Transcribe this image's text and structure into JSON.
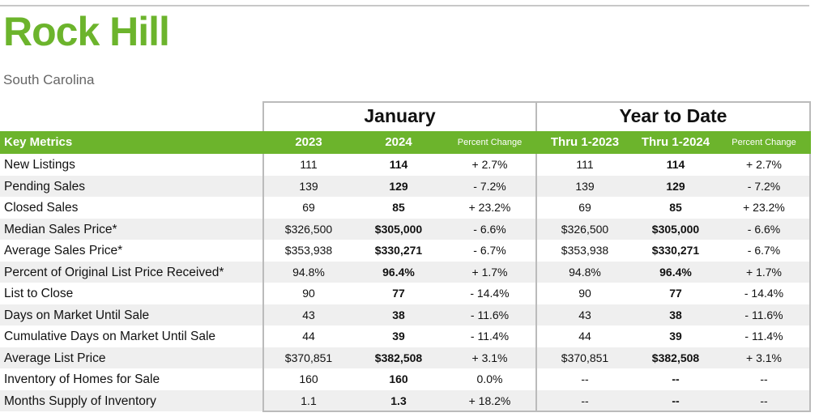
{
  "title": "Rock Hill",
  "subtitle": "South Carolina",
  "groups": {
    "january": "January",
    "ytd": "Year to Date"
  },
  "headers": {
    "key_metrics": "Key Metrics",
    "jan_2023": "2023",
    "jan_2024": "2024",
    "jan_pct": "Percent Change",
    "ytd_2023": "Thru 1-2023",
    "ytd_2024": "Thru 1-2024",
    "ytd_pct": "Percent Change"
  },
  "colors": {
    "accent": "#6cb42c",
    "row_alt": "#efefef",
    "border": "#bbbbbb"
  },
  "rows": [
    {
      "label": "New Listings",
      "jan_2023": "111",
      "jan_2024": "114",
      "jan_pct": "+ 2.7%",
      "ytd_2023": "111",
      "ytd_2024": "114",
      "ytd_pct": "+ 2.7%"
    },
    {
      "label": "Pending Sales",
      "jan_2023": "139",
      "jan_2024": "129",
      "jan_pct": "- 7.2%",
      "ytd_2023": "139",
      "ytd_2024": "129",
      "ytd_pct": "- 7.2%"
    },
    {
      "label": "Closed Sales",
      "jan_2023": "69",
      "jan_2024": "85",
      "jan_pct": "+ 23.2%",
      "ytd_2023": "69",
      "ytd_2024": "85",
      "ytd_pct": "+ 23.2%"
    },
    {
      "label": "Median Sales Price*",
      "jan_2023": "$326,500",
      "jan_2024": "$305,000",
      "jan_pct": "- 6.6%",
      "ytd_2023": "$326,500",
      "ytd_2024": "$305,000",
      "ytd_pct": "- 6.6%"
    },
    {
      "label": "Average Sales Price*",
      "jan_2023": "$353,938",
      "jan_2024": "$330,271",
      "jan_pct": "- 6.7%",
      "ytd_2023": "$353,938",
      "ytd_2024": "$330,271",
      "ytd_pct": "- 6.7%"
    },
    {
      "label": "Percent of Original List Price Received*",
      "jan_2023": "94.8%",
      "jan_2024": "96.4%",
      "jan_pct": "+ 1.7%",
      "ytd_2023": "94.8%",
      "ytd_2024": "96.4%",
      "ytd_pct": "+ 1.7%"
    },
    {
      "label": "List to Close",
      "jan_2023": "90",
      "jan_2024": "77",
      "jan_pct": "- 14.4%",
      "ytd_2023": "90",
      "ytd_2024": "77",
      "ytd_pct": "- 14.4%"
    },
    {
      "label": "Days on Market Until Sale",
      "jan_2023": "43",
      "jan_2024": "38",
      "jan_pct": "- 11.6%",
      "ytd_2023": "43",
      "ytd_2024": "38",
      "ytd_pct": "- 11.6%"
    },
    {
      "label": "Cumulative Days on Market Until Sale",
      "jan_2023": "44",
      "jan_2024": "39",
      "jan_pct": "- 11.4%",
      "ytd_2023": "44",
      "ytd_2024": "39",
      "ytd_pct": "- 11.4%"
    },
    {
      "label": "Average List Price",
      "jan_2023": "$370,851",
      "jan_2024": "$382,508",
      "jan_pct": "+ 3.1%",
      "ytd_2023": "$370,851",
      "ytd_2024": "$382,508",
      "ytd_pct": "+ 3.1%"
    },
    {
      "label": "Inventory of Homes for Sale",
      "jan_2023": "160",
      "jan_2024": "160",
      "jan_pct": "0.0%",
      "ytd_2023": "--",
      "ytd_2024": "--",
      "ytd_pct": "--"
    },
    {
      "label": "Months Supply of Inventory",
      "jan_2023": "1.1",
      "jan_2024": "1.3",
      "jan_pct": "+ 18.2%",
      "ytd_2023": "--",
      "ytd_2024": "--",
      "ytd_pct": "--"
    }
  ]
}
